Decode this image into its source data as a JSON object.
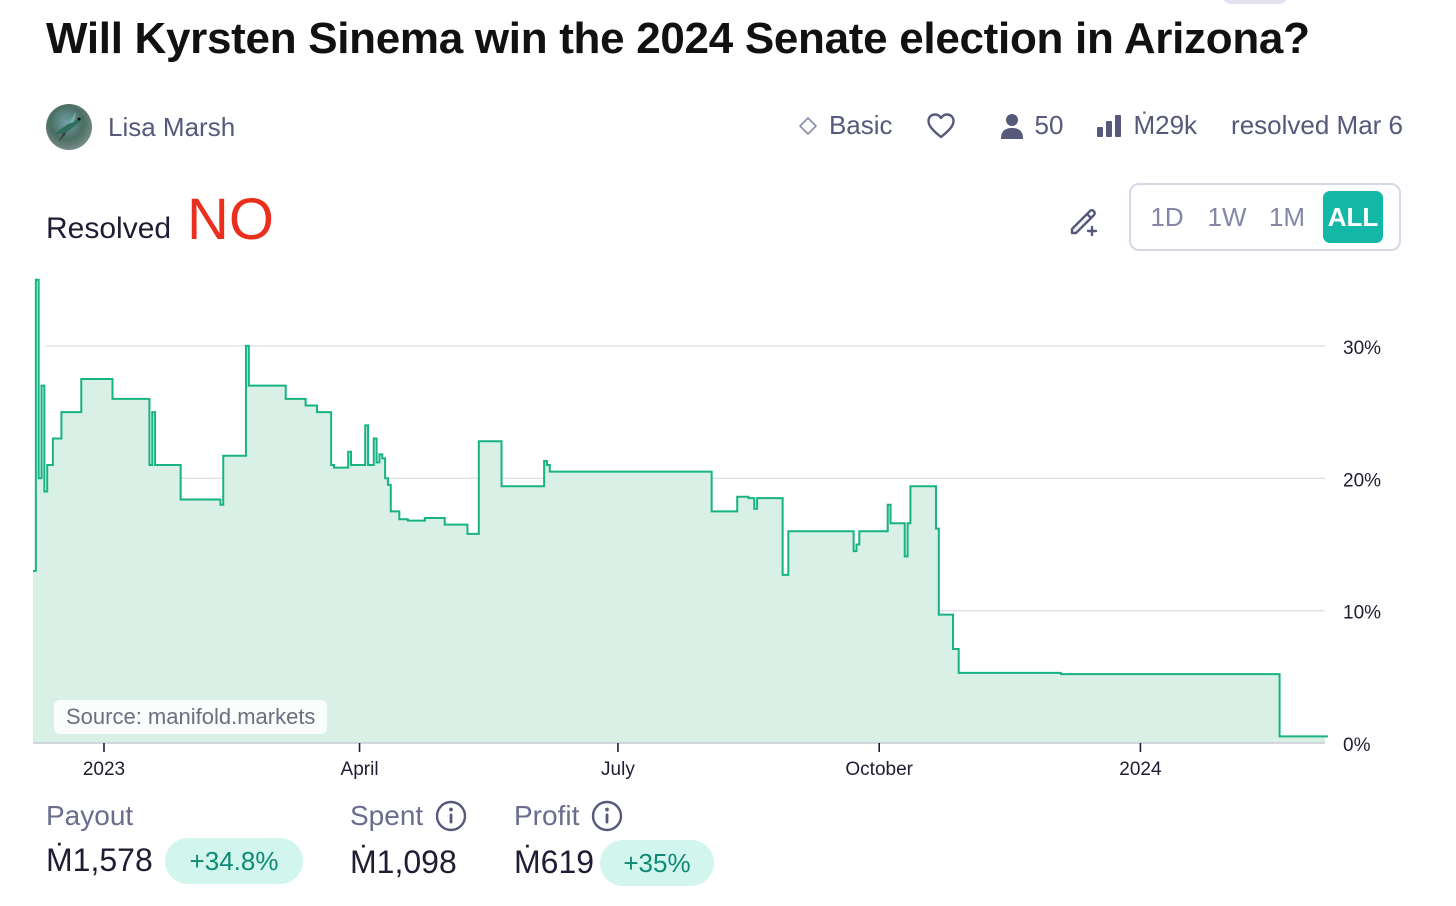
{
  "title": "Will Kyrsten Sinema win the 2024 Senate election in Arizona?",
  "author": {
    "name": "Lisa Marsh",
    "avatar_icon": "hummingbird-avatar"
  },
  "meta": {
    "tier": "Basic",
    "tier_icon": "diamond-icon",
    "like_icon": "heart-icon",
    "traders_icon": "person-icon",
    "traders": "50",
    "volume_icon": "bar-chart-icon",
    "volume": "Ṁ29k",
    "resolved": "resolved Mar 6"
  },
  "resolution": {
    "label": "Resolved",
    "value": "NO",
    "color": "#ea2f1f"
  },
  "edit_icon": "pencil-plus-icon",
  "time_ranges": [
    "1D",
    "1W",
    "1M",
    "ALL"
  ],
  "time_range_selected": "ALL",
  "source": "Source: manifold.markets",
  "colors": {
    "line": "#17b383",
    "fill": "#d8f0e5",
    "accent": "#14b8a6"
  },
  "chart_data": {
    "type": "area",
    "step": true,
    "x_unit": "date",
    "x": [
      "2022-12-07",
      "2022-12-08",
      "2022-12-09",
      "2022-12-10",
      "2022-12-11",
      "2022-12-12",
      "2022-12-14",
      "2022-12-17",
      "2022-12-24",
      "2023-01-04",
      "2023-01-17",
      "2023-01-18",
      "2023-01-19",
      "2023-01-28",
      "2023-02-11",
      "2023-02-12",
      "2023-02-20",
      "2023-02-21",
      "2023-02-22",
      "2023-03-06",
      "2023-03-13",
      "2023-03-17",
      "2023-03-22",
      "2023-03-23",
      "2023-03-27",
      "2023-03-28",
      "2023-03-29",
      "2023-04-03",
      "2023-04-04",
      "2023-04-06",
      "2023-04-07",
      "2023-04-08",
      "2023-04-09",
      "2023-04-10",
      "2023-04-11",
      "2023-04-12",
      "2023-04-15",
      "2023-04-18",
      "2023-04-22",
      "2023-04-24",
      "2023-05-01",
      "2023-05-09",
      "2023-05-13",
      "2023-05-21",
      "2023-05-24",
      "2023-05-26",
      "2023-06-05",
      "2023-06-06",
      "2023-06-07",
      "2023-08-03",
      "2023-08-04",
      "2023-08-12",
      "2023-08-16",
      "2023-08-18",
      "2023-08-19",
      "2023-08-28",
      "2023-08-30",
      "2023-09-21",
      "2023-09-22",
      "2023-09-23",
      "2023-09-24",
      "2023-10-04",
      "2023-10-05",
      "2023-10-10",
      "2023-10-11",
      "2023-10-12",
      "2023-10-21",
      "2023-10-22",
      "2023-10-24",
      "2023-10-25",
      "2023-10-26",
      "2023-10-27",
      "2023-10-28",
      "2023-10-29",
      "2023-12-04",
      "2024-02-19",
      "2024-02-20",
      "2024-03-05",
      "2024-03-06"
    ],
    "values": [
      13,
      35,
      20,
      27,
      19,
      21,
      23,
      25,
      27.5,
      26,
      21,
      25,
      21,
      18.4,
      18,
      21.7,
      30,
      27,
      27,
      26,
      25.5,
      25,
      21,
      20.8,
      20.8,
      22,
      21,
      24,
      21,
      23,
      21.2,
      21.8,
      21.5,
      20,
      19.5,
      17.5,
      16.9,
      16.8,
      16.8,
      17,
      16.5,
      15.8,
      22.8,
      19.4,
      19.4,
      19.4,
      21.3,
      21,
      20.5,
      17.5,
      17.5,
      18.6,
      18.5,
      17.7,
      18.5,
      12.7,
      16,
      16,
      14.5,
      15,
      16,
      18,
      16.6,
      14.1,
      16.6,
      19.4,
      16.2,
      9.7,
      9.7,
      9.7,
      9.7,
      7.1,
      7.1,
      5.3,
      5.2,
      0.5,
      0.5,
      0.5,
      0.5
    ],
    "xticks": [
      "2023",
      "April",
      "July",
      "October",
      "2024"
    ],
    "yticks": [
      "0%",
      "10%",
      "20%",
      "30%"
    ],
    "xlim": [
      "2022-12-07",
      "2024-03-06"
    ],
    "ylim": [
      0,
      38
    ],
    "grid": true,
    "xlabel": "",
    "ylabel": ""
  },
  "stats": {
    "payout_label": "Payout",
    "payout_value": "Ṁ1,578",
    "payout_change": "+34.8%",
    "spent_label": "Spent",
    "spent_value": "Ṁ1,098",
    "profit_label": "Profit",
    "profit_value": "Ṁ619",
    "profit_change": "+35%",
    "info_icon": "info-icon"
  }
}
